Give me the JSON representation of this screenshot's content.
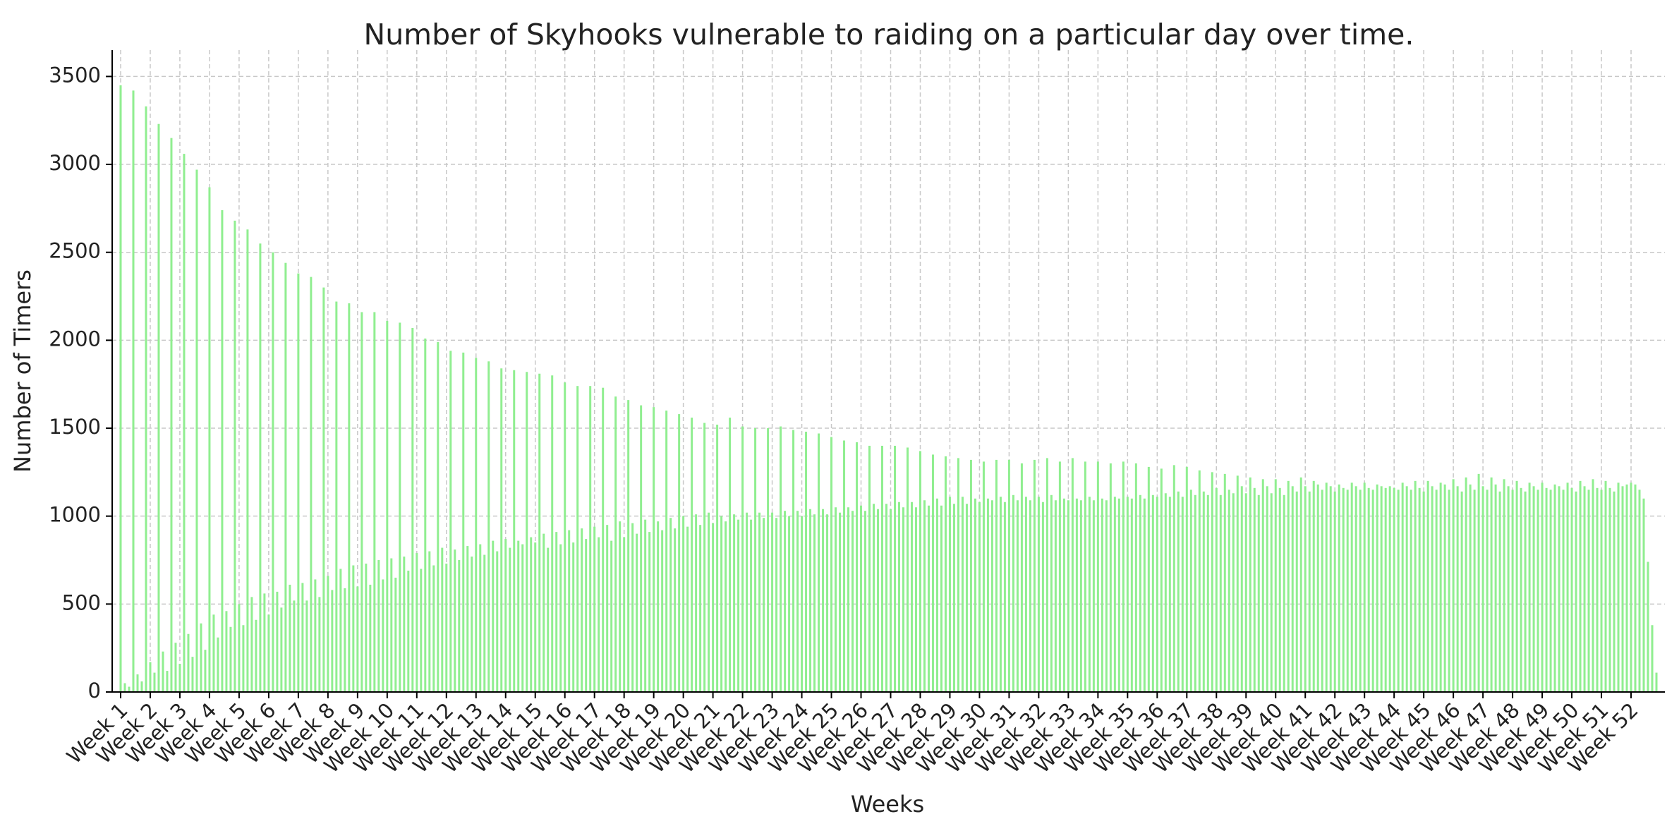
{
  "chart_data": {
    "type": "bar",
    "title": "Number of Skyhooks vulnerable to raiding on a particular day over time.",
    "x_label": "Weeks",
    "y_label": "Number of Timers",
    "color": "#90ee90",
    "grid": true,
    "ylim": [
      0,
      3650
    ],
    "yticks": [
      0,
      500,
      1000,
      1500,
      2000,
      2500,
      3000,
      3500
    ],
    "categories": [
      "Week 1",
      null,
      null,
      null,
      null,
      null,
      null,
      "Week 2",
      null,
      null,
      null,
      null,
      null,
      null,
      "Week 3",
      null,
      null,
      null,
      null,
      null,
      null,
      "Week 4",
      null,
      null,
      null,
      null,
      null,
      null,
      "Week 5",
      null,
      null,
      null,
      null,
      null,
      null,
      "Week 6",
      null,
      null,
      null,
      null,
      null,
      null,
      "Week 7",
      null,
      null,
      null,
      null,
      null,
      null,
      "Week 8",
      null,
      null,
      null,
      null,
      null,
      null,
      "Week 9",
      null,
      null,
      null,
      null,
      null,
      null,
      "Week 10",
      null,
      null,
      null,
      null,
      null,
      null,
      "Week 11",
      null,
      null,
      null,
      null,
      null,
      null,
      "Week 12",
      null,
      null,
      null,
      null,
      null,
      null,
      "Week 13",
      null,
      null,
      null,
      null,
      null,
      null,
      "Week 14",
      null,
      null,
      null,
      null,
      null,
      null,
      "Week 15",
      null,
      null,
      null,
      null,
      null,
      null,
      "Week 16",
      null,
      null,
      null,
      null,
      null,
      null,
      "Week 17",
      null,
      null,
      null,
      null,
      null,
      null,
      "Week 18",
      null,
      null,
      null,
      null,
      null,
      null,
      "Week 19",
      null,
      null,
      null,
      null,
      null,
      null,
      "Week 20",
      null,
      null,
      null,
      null,
      null,
      null,
      "Week 21",
      null,
      null,
      null,
      null,
      null,
      null,
      "Week 22",
      null,
      null,
      null,
      null,
      null,
      null,
      "Week 23",
      null,
      null,
      null,
      null,
      null,
      null,
      "Week 24",
      null,
      null,
      null,
      null,
      null,
      null,
      "Week 25",
      null,
      null,
      null,
      null,
      null,
      null,
      "Week 26",
      null,
      null,
      null,
      null,
      null,
      null,
      "Week 27",
      null,
      null,
      null,
      null,
      null,
      null,
      "Week 28",
      null,
      null,
      null,
      null,
      null,
      null,
      "Week 29",
      null,
      null,
      null,
      null,
      null,
      null,
      "Week 30",
      null,
      null,
      null,
      null,
      null,
      null,
      "Week 31",
      null,
      null,
      null,
      null,
      null,
      null,
      "Week 32",
      null,
      null,
      null,
      null,
      null,
      null,
      "Week 33",
      null,
      null,
      null,
      null,
      null,
      null,
      "Week 34",
      null,
      null,
      null,
      null,
      null,
      null,
      "Week 35",
      null,
      null,
      null,
      null,
      null,
      null,
      "Week 36",
      null,
      null,
      null,
      null,
      null,
      null,
      "Week 37",
      null,
      null,
      null,
      null,
      null,
      null,
      "Week 38",
      null,
      null,
      null,
      null,
      null,
      null,
      "Week 39",
      null,
      null,
      null,
      null,
      null,
      null,
      "Week 40",
      null,
      null,
      null,
      null,
      null,
      null,
      "Week 41",
      null,
      null,
      null,
      null,
      null,
      null,
      "Week 42",
      null,
      null,
      null,
      null,
      null,
      null,
      "Week 43",
      null,
      null,
      null,
      null,
      null,
      null,
      "Week 44",
      null,
      null,
      null,
      null,
      null,
      null,
      "Week 45",
      null,
      null,
      null,
      null,
      null,
      null,
      "Week 46",
      null,
      null,
      null,
      null,
      null,
      null,
      "Week 47",
      null,
      null,
      null,
      null,
      null,
      null,
      "Week 48",
      null,
      null,
      null,
      null,
      null,
      null,
      "Week 49",
      null,
      null,
      null,
      null,
      null,
      null,
      "Week 50",
      null,
      null,
      null,
      null,
      null,
      null,
      "Week 51",
      null,
      null,
      null,
      null,
      null,
      null,
      "Week 52",
      null,
      null,
      null,
      null,
      null,
      null
    ],
    "values": [
      3450,
      50,
      30,
      3420,
      100,
      60,
      3330,
      170,
      110,
      3230,
      230,
      120,
      3150,
      280,
      160,
      3060,
      330,
      200,
      2970,
      390,
      240,
      2870,
      440,
      310,
      2740,
      460,
      370,
      2680,
      500,
      380,
      2630,
      540,
      410,
      2550,
      560,
      440,
      2500,
      570,
      480,
      2440,
      610,
      520,
      2380,
      620,
      520,
      2360,
      640,
      540,
      2300,
      660,
      580,
      2220,
      700,
      590,
      2210,
      720,
      600,
      2160,
      730,
      610,
      2160,
      750,
      640,
      2110,
      760,
      650,
      2100,
      770,
      690,
      2070,
      790,
      700,
      2010,
      800,
      720,
      1990,
      820,
      730,
      1940,
      810,
      750,
      1930,
      830,
      770,
      1900,
      840,
      780,
      1880,
      860,
      800,
      1840,
      870,
      820,
      1830,
      860,
      840,
      1820,
      880,
      850,
      1810,
      900,
      820,
      1800,
      910,
      840,
      1760,
      920,
      850,
      1740,
      930,
      870,
      1740,
      940,
      880,
      1730,
      950,
      860,
      1680,
      970,
      880,
      1660,
      960,
      900,
      1630,
      980,
      910,
      1620,
      970,
      920,
      1600,
      990,
      930,
      1580,
      1000,
      940,
      1560,
      1010,
      950,
      1530,
      1020,
      960,
      1520,
      1000,
      970,
      1560,
      1010,
      980,
      1510,
      1020,
      980,
      1500,
      1020,
      990,
      1500,
      1020,
      990,
      1510,
      1030,
      1000,
      1490,
      1030,
      1000,
      1480,
      1040,
      1010,
      1470,
      1040,
      1010,
      1450,
      1050,
      1020,
      1430,
      1050,
      1030,
      1420,
      1060,
      1030,
      1400,
      1070,
      1040,
      1400,
      1070,
      1040,
      1400,
      1080,
      1050,
      1390,
      1080,
      1050,
      1370,
      1090,
      1060,
      1350,
      1100,
      1060,
      1340,
      1110,
      1070,
      1330,
      1110,
      1070,
      1320,
      1100,
      1080,
      1310,
      1100,
      1090,
      1320,
      1110,
      1080,
      1320,
      1120,
      1090,
      1300,
      1110,
      1090,
      1320,
      1110,
      1080,
      1330,
      1120,
      1090,
      1310,
      1100,
      1090,
      1330,
      1100,
      1090,
      1310,
      1110,
      1090,
      1310,
      1100,
      1090,
      1300,
      1110,
      1100,
      1310,
      1110,
      1100,
      1300,
      1120,
      1100,
      1280,
      1120,
      1110,
      1270,
      1130,
      1110,
      1290,
      1140,
      1110,
      1280,
      1150,
      1120,
      1260,
      1140,
      1120,
      1250,
      1160,
      1120,
      1240,
      1150,
      1130,
      1230,
      1170,
      1130,
      1220,
      1160,
      1120,
      1210,
      1170,
      1130,
      1210,
      1160,
      1120,
      1200,
      1170,
      1140,
      1220,
      1170,
      1140,
      1200,
      1180,
      1150,
      1190,
      1170,
      1140,
      1180,
      1160,
      1150,
      1190,
      1170,
      1150,
      1190,
      1160,
      1150,
      1180,
      1170,
      1160,
      1170,
      1160,
      1150,
      1190,
      1170,
      1150,
      1200,
      1160,
      1140,
      1200,
      1170,
      1150,
      1190,
      1180,
      1150,
      1210,
      1170,
      1140,
      1220,
      1180,
      1150,
      1240,
      1170,
      1150,
      1220,
      1180,
      1140,
      1210,
      1170,
      1150,
      1200,
      1160,
      1140,
      1190,
      1170,
      1150,
      1190,
      1160,
      1150,
      1180,
      1170,
      1150,
      1190,
      1160,
      1140,
      1200,
      1170,
      1150,
      1210,
      1160,
      1150,
      1200,
      1160,
      1140,
      1190,
      1170,
      1180,
      1190,
      1180,
      1150,
      1100,
      740,
      380,
      110
    ]
  }
}
